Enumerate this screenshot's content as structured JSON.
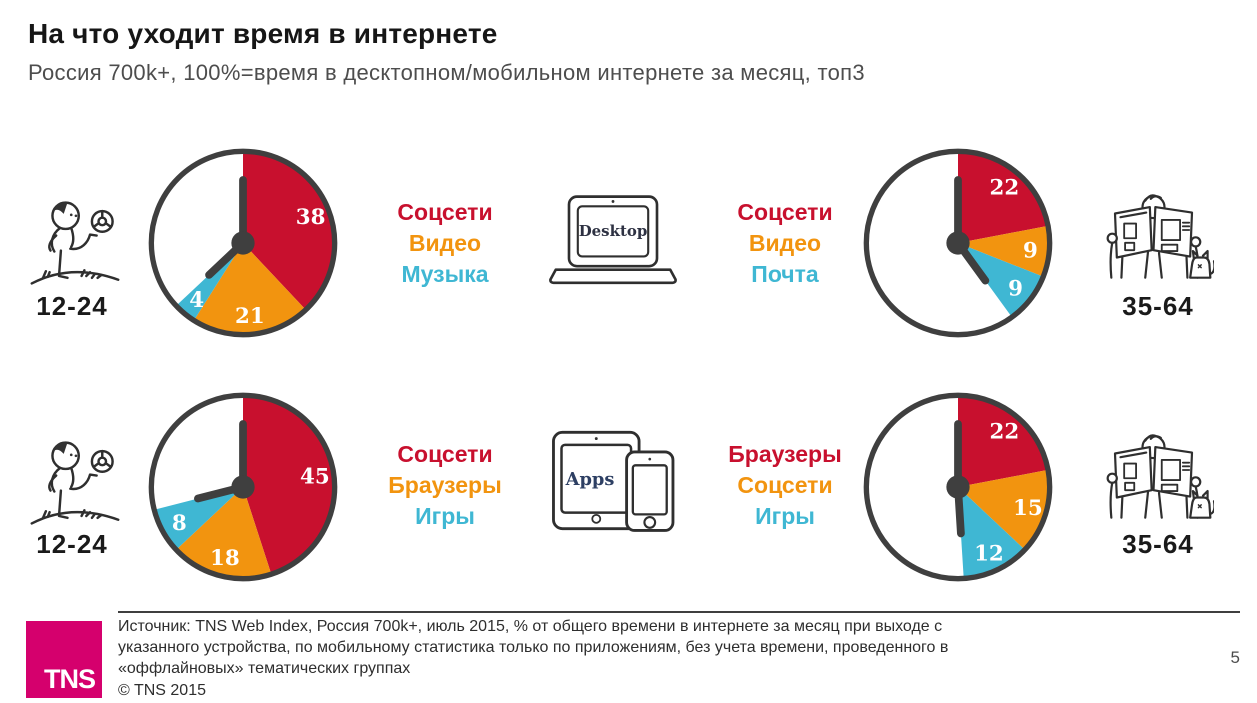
{
  "header": {
    "title": "На что уходит время в интернете",
    "subtitle": "Россия 700k+, 100%=время в десктопном/мобильном интернете за месяц, топ3"
  },
  "colors": {
    "slice1": "#C8102E",
    "slice2": "#F2940F",
    "slice3": "#3FB7D3",
    "clock": "#3F3F3F",
    "brand_magenta": "#D5006D"
  },
  "chart_data": [
    {
      "type": "pie",
      "device": "Desktop",
      "age_group": "12-24",
      "labels": [
        "Соцсети",
        "Видео",
        "Музыка"
      ],
      "values": [
        38,
        21,
        4
      ],
      "colors": [
        "#C8102E",
        "#F2940F",
        "#3FB7D3"
      ],
      "unit": "% времени в интернете за месяц",
      "style": "clock face, slices start at 12 o'clock clockwise, remainder white"
    },
    {
      "type": "pie",
      "device": "Desktop",
      "age_group": "35-64",
      "labels": [
        "Соцсети",
        "Видео",
        "Почта"
      ],
      "values": [
        22,
        9,
        9
      ],
      "colors": [
        "#C8102E",
        "#F2940F",
        "#3FB7D3"
      ],
      "unit": "% времени в интернете за месяц",
      "style": "clock face, slices start at 12 o'clock clockwise, remainder white"
    },
    {
      "type": "pie",
      "device": "Apps",
      "age_group": "12-24",
      "labels": [
        "Соцсети",
        "Браузеры",
        "Игры"
      ],
      "values": [
        45,
        18,
        8
      ],
      "colors": [
        "#C8102E",
        "#F2940F",
        "#3FB7D3"
      ],
      "unit": "% времени в интернете за месяц",
      "style": "clock face, slices start at 12 o'clock clockwise, remainder white"
    },
    {
      "type": "pie",
      "device": "Apps",
      "age_group": "35-64",
      "labels": [
        "Браузеры",
        "Соцсети",
        "Игры"
      ],
      "values": [
        22,
        15,
        12
      ],
      "colors": [
        "#C8102E",
        "#F2940F",
        "#3FB7D3"
      ],
      "unit": "% времени в интернете за месяц",
      "style": "clock face, slices start at 12 o'clock clockwise, remainder white"
    }
  ],
  "footer": {
    "source_line1": "Источник: TNS Web Index, Россия 700k+, июль 2015, % от общего времени в интернете за месяц при выходе с",
    "source_line2": "указанного устройства, по мобильному статистика только по приложениям, без учета времени, проведенного в",
    "source_line3": "«оффлайновых» тематических группах",
    "copyright": "© TNS 2015",
    "logo_text": "TNS",
    "page_number": "5"
  }
}
